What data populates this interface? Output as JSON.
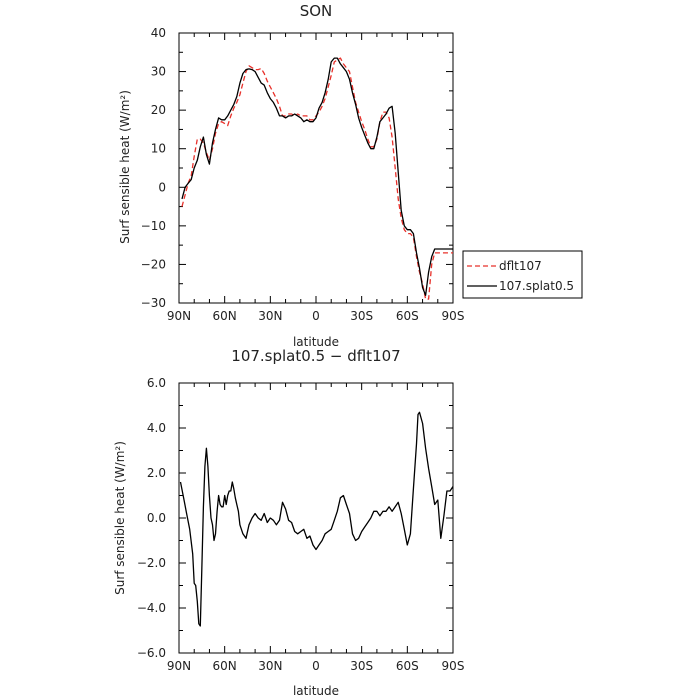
{
  "chart_data": [
    {
      "type": "line",
      "title": "SON",
      "xlabel": "latitude",
      "ylabel": "Surf sensible heat (W/m²)",
      "xlim": [
        90,
        -90
      ],
      "ylim": [
        -30,
        40
      ],
      "x_ticks": [
        90,
        60,
        30,
        0,
        -30,
        -60,
        -90
      ],
      "x_tick_labels": [
        "90N",
        "60N",
        "30N",
        "0",
        "30S",
        "60S",
        "90S"
      ],
      "y_ticks": [
        -30,
        -20,
        -10,
        0,
        10,
        20,
        30,
        40
      ],
      "y_tick_labels": [
        "−30",
        "−20",
        "−10",
        "0",
        "10",
        "20",
        "30",
        "40"
      ],
      "legend_placement": "right",
      "series": [
        {
          "name": "dflt107",
          "color": "#e8302a",
          "dash": "dashed",
          "x": [
            88,
            86,
            84,
            82,
            80,
            78,
            76,
            74,
            72,
            70,
            68,
            66,
            64,
            62,
            60,
            58,
            56,
            54,
            52,
            50,
            48,
            46,
            44,
            42,
            40,
            38,
            36,
            34,
            32,
            30,
            28,
            26,
            24,
            22,
            20,
            18,
            16,
            14,
            12,
            10,
            8,
            6,
            4,
            2,
            0,
            -2,
            -4,
            -6,
            -8,
            -10,
            -12,
            -14,
            -16,
            -18,
            -20,
            -22,
            -24,
            -26,
            -28,
            -30,
            -32,
            -34,
            -36,
            -38,
            -40,
            -42,
            -44,
            -46,
            -48,
            -50,
            -52,
            -54,
            -56,
            -58,
            -60,
            -62,
            -64,
            -66,
            -68,
            -70,
            -72,
            -74,
            -76,
            -78,
            -80,
            -82,
            -84,
            -86,
            -88,
            -90
          ],
          "values": [
            -5,
            -2,
            1,
            3,
            8,
            12.5,
            12.5,
            11.5,
            9,
            7,
            10,
            14,
            16.5,
            17,
            16.5,
            16,
            18.5,
            20.5,
            22,
            24,
            27,
            30,
            31.5,
            31,
            30.5,
            30.5,
            30.8,
            29.5,
            27.5,
            26,
            24.5,
            23,
            21,
            18.5,
            18.5,
            19,
            19,
            18.5,
            19,
            18.5,
            18.5,
            18.5,
            17.5,
            17.5,
            18.5,
            19.5,
            21,
            23,
            26,
            29,
            32.5,
            33,
            33.5,
            32,
            31,
            30,
            26,
            22,
            19.5,
            17,
            15,
            12.5,
            10.5,
            10.5,
            12.5,
            17,
            19.5,
            19.5,
            18,
            13,
            5,
            -3,
            -8,
            -11,
            -12,
            -12,
            -13,
            -18,
            -22,
            -25,
            -29,
            -29,
            -20,
            -17,
            -17,
            -17,
            -17,
            -17,
            -17,
            -17
          ]
        },
        {
          "name": "107.splat0.5",
          "color": "#000000",
          "dash": "solid",
          "x": [
            88,
            86,
            84,
            82,
            80,
            78,
            76,
            74,
            72,
            70,
            68,
            66,
            64,
            62,
            60,
            58,
            56,
            54,
            52,
            50,
            48,
            46,
            44,
            42,
            40,
            38,
            36,
            34,
            32,
            30,
            28,
            26,
            24,
            22,
            20,
            18,
            16,
            14,
            12,
            10,
            8,
            6,
            4,
            2,
            0,
            -2,
            -4,
            -6,
            -8,
            -10,
            -12,
            -14,
            -16,
            -18,
            -20,
            -22,
            -24,
            -26,
            -28,
            -30,
            -32,
            -34,
            -36,
            -38,
            -40,
            -42,
            -44,
            -46,
            -48,
            -50,
            -52,
            -54,
            -56,
            -58,
            -60,
            -62,
            -64,
            -66,
            -68,
            -70,
            -72,
            -74,
            -76,
            -78,
            -80,
            -82,
            -84,
            -86,
            -88,
            -90
          ],
          "values": [
            -3,
            0,
            1,
            2,
            5,
            7,
            10.5,
            13,
            8.5,
            6,
            11.5,
            15,
            18,
            17.5,
            17.5,
            18.5,
            20,
            21.5,
            23.5,
            27,
            29.5,
            30.5,
            30.7,
            30.5,
            30,
            28.5,
            27,
            26.5,
            24.5,
            23,
            22,
            20.5,
            18.5,
            18.5,
            18,
            18.5,
            18.5,
            19,
            18.5,
            18,
            17,
            17.5,
            17,
            17,
            18,
            20.5,
            22,
            24.5,
            28,
            32.5,
            33.5,
            33.5,
            32,
            31,
            30,
            28,
            24.5,
            21.5,
            18,
            15.5,
            13.5,
            11.5,
            10,
            10,
            13,
            17,
            18,
            19,
            20.5,
            21,
            14,
            4,
            -6,
            -10,
            -11,
            -11,
            -12,
            -17,
            -21,
            -26,
            -28,
            -22,
            -18,
            -16,
            -16,
            -16,
            -16,
            -16,
            -16,
            -16
          ]
        }
      ]
    },
    {
      "type": "line",
      "title": "107.splat0.5 − dflt107",
      "xlabel": "latitude",
      "ylabel": "Surf sensible heat (W/m²)",
      "xlim": [
        90,
        -90
      ],
      "ylim": [
        -6,
        6
      ],
      "x_ticks": [
        90,
        60,
        30,
        0,
        -30,
        -60,
        -90
      ],
      "x_tick_labels": [
        "90N",
        "60N",
        "30N",
        "0",
        "30S",
        "60S",
        "90S"
      ],
      "y_ticks": [
        -6,
        -4,
        -2,
        0,
        2,
        4,
        6
      ],
      "y_tick_labels": [
        "−6.0",
        "−4.0",
        "−2.0",
        "0.0",
        "2.0",
        "4.0",
        "6.0"
      ],
      "series": [
        {
          "color": "#000000",
          "dash": "solid",
          "x": [
            89,
            87,
            85,
            83,
            81,
            80,
            79,
            78,
            77,
            76,
            75,
            74,
            73,
            72,
            71,
            70,
            69,
            68,
            67,
            66,
            65,
            64,
            63,
            62,
            61,
            60,
            59,
            58,
            57,
            56,
            55,
            54,
            53,
            52,
            51,
            50,
            48,
            46,
            44,
            42,
            40,
            38,
            36,
            34,
            32,
            30,
            28,
            26,
            24,
            22,
            20,
            18,
            16,
            14,
            12,
            10,
            8,
            6,
            4,
            2,
            0,
            -2,
            -4,
            -6,
            -8,
            -10,
            -12,
            -14,
            -16,
            -18,
            -20,
            -22,
            -24,
            -26,
            -28,
            -30,
            -32,
            -34,
            -36,
            -38,
            -40,
            -42,
            -44,
            -46,
            -48,
            -50,
            -52,
            -54,
            -56,
            -58,
            -60,
            -62,
            -64,
            -66,
            -67,
            -68,
            -70,
            -72,
            -74,
            -76,
            -78,
            -80,
            -82,
            -84,
            -86,
            -88,
            -90
          ],
          "values": [
            1.6,
            0.9,
            0.2,
            -0.5,
            -1.6,
            -2.9,
            -3,
            -3.7,
            -4.7,
            -4.8,
            -2.3,
            0.5,
            2.3,
            3.1,
            2.3,
            1,
            0,
            -0.3,
            -1,
            -0.7,
            0.3,
            1,
            0.6,
            0.5,
            0.5,
            1,
            0.6,
            1,
            1.2,
            1.2,
            1.6,
            1.3,
            0.9,
            0.6,
            0.3,
            -0.3,
            -0.7,
            -0.9,
            -0.3,
            0,
            0.2,
            0,
            -0.1,
            0.2,
            -0.2,
            0,
            -0.1,
            -0.3,
            -0.1,
            0.7,
            0.4,
            -0.1,
            -0.2,
            -0.6,
            -0.7,
            -0.6,
            -0.5,
            -0.9,
            -0.8,
            -1.2,
            -1.4,
            -1.2,
            -1,
            -0.7,
            -0.6,
            -0.5,
            -0.1,
            0.3,
            0.9,
            1,
            0.6,
            0.2,
            -0.7,
            -1,
            -0.9,
            -0.6,
            -0.4,
            -0.2,
            0,
            0.3,
            0.3,
            0.1,
            0.3,
            0.3,
            0.5,
            0.3,
            0.5,
            0.7,
            0.2,
            -0.5,
            -1.2,
            -0.7,
            1.3,
            3.3,
            4.6,
            4.7,
            4.2,
            3.1,
            2.2,
            1.4,
            0.6,
            0.8,
            -0.9,
            0.1,
            1.2,
            1.2,
            1.4
          ]
        }
      ]
    }
  ]
}
